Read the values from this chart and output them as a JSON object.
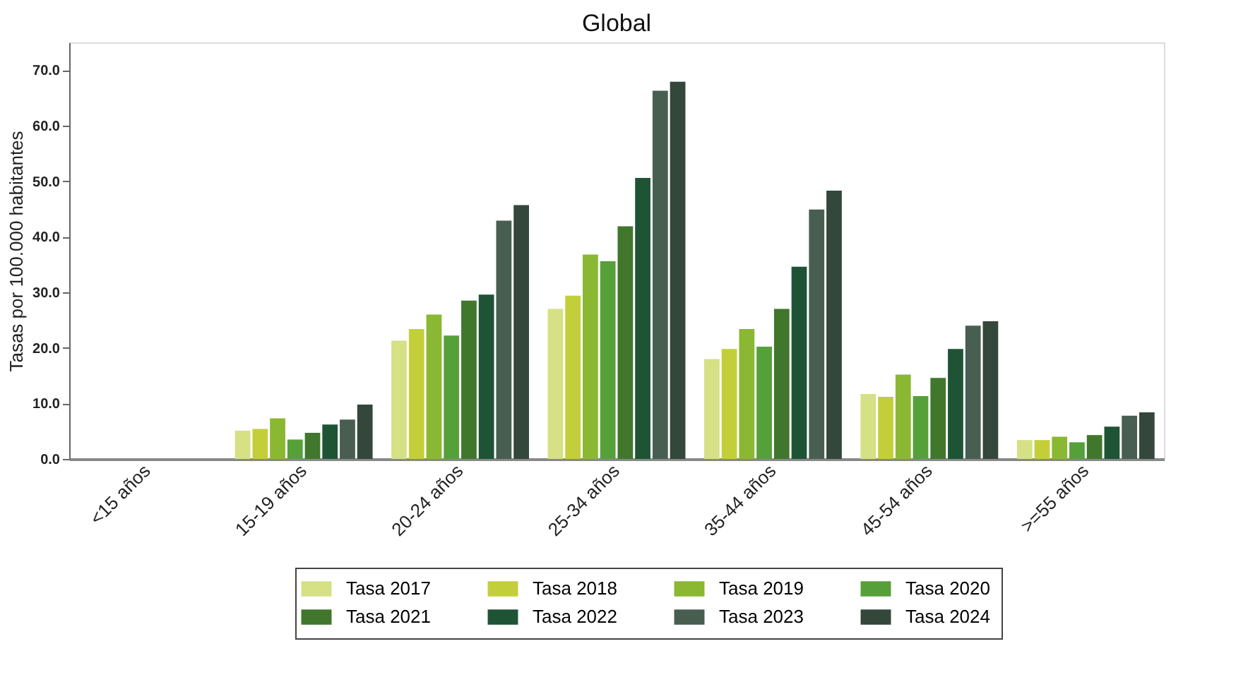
{
  "chart_data": {
    "type": "bar",
    "title": "Global",
    "ylabel": "Tasas por 100.000 habitantes",
    "categories": [
      "<15 años",
      "15-19 años",
      "20-24 años",
      "25-34 años",
      "35-44 años",
      "45-54 años",
      ">=55 años"
    ],
    "series": [
      {
        "name": "Tasa 2017",
        "color": "#d6e085",
        "values": [
          null,
          5.1,
          21.3,
          27.0,
          18.0,
          11.7,
          3.4
        ]
      },
      {
        "name": "Tasa 2018",
        "color": "#c3cf3a",
        "values": [
          null,
          5.4,
          23.4,
          29.4,
          19.8,
          11.2,
          3.4
        ]
      },
      {
        "name": "Tasa 2019",
        "color": "#8ab833",
        "values": [
          null,
          7.3,
          26.0,
          36.8,
          23.4,
          15.2,
          4.0
        ]
      },
      {
        "name": "Tasa 2020",
        "color": "#56a03a",
        "values": [
          null,
          3.5,
          22.2,
          35.6,
          20.2,
          11.3,
          3.0
        ]
      },
      {
        "name": "Tasa 2021",
        "color": "#41772c",
        "values": [
          null,
          4.7,
          28.5,
          41.9,
          27.0,
          14.6,
          4.3
        ]
      },
      {
        "name": "Tasa 2022",
        "color": "#1e5435",
        "values": [
          null,
          6.2,
          29.6,
          50.6,
          34.6,
          19.8,
          5.8
        ]
      },
      {
        "name": "Tasa 2023",
        "color": "#485e50",
        "values": [
          null,
          7.1,
          42.9,
          66.3,
          44.9,
          24.0,
          7.8
        ]
      },
      {
        "name": "Tasa 2024",
        "color": "#33473b",
        "values": [
          null,
          9.8,
          45.7,
          67.9,
          48.3,
          24.8,
          8.4
        ]
      }
    ],
    "ylim": [
      0,
      75
    ],
    "yticks": [
      {
        "value": 0,
        "label": "0.0"
      },
      {
        "value": 10,
        "label": "10.0"
      },
      {
        "value": 20,
        "label": "20.0"
      },
      {
        "value": 30,
        "label": "30.0"
      },
      {
        "value": 40,
        "label": "40.0"
      },
      {
        "value": 50,
        "label": "50.0"
      },
      {
        "value": 60,
        "label": "60.0"
      },
      {
        "value": 70,
        "label": "70.0"
      }
    ],
    "grid": false,
    "legend": "bottom"
  }
}
